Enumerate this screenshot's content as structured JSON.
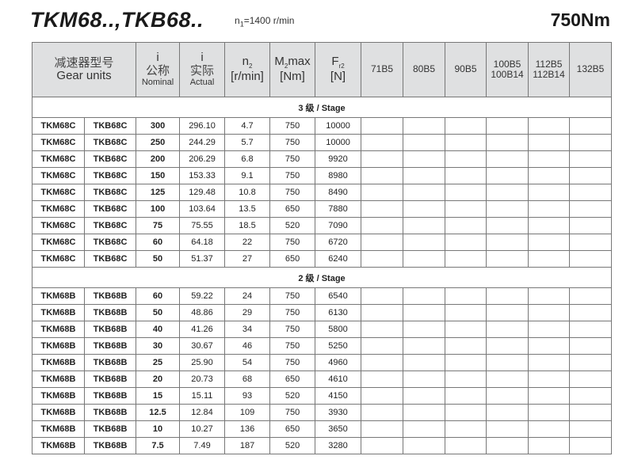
{
  "header": {
    "title": "TKM68..,TKB68..",
    "speed_prefix": "n",
    "speed_sub": "1",
    "speed_value": "=1400 r/min",
    "torque": "750Nm"
  },
  "columns": {
    "gear_units_cn": "减速器型号",
    "gear_units_en": "Gear units",
    "i_symbol": "i",
    "nominal_cn": "公称",
    "nominal_en": "Nominal",
    "actual_cn": "实际",
    "actual_en": "Actual",
    "n2_main": "n",
    "n2_sub": "2",
    "n2_unit": "[r/min]",
    "m2_main": "M",
    "m2_sub": "2",
    "m2_tail": "max",
    "m2_unit": "[Nm]",
    "fr2_main": "F",
    "fr2_sub": "r2",
    "fr2_unit": "[N]",
    "motor": [
      "71B5",
      "80B5",
      "90B5",
      "100B5",
      "100B14",
      "112B5",
      "112B14",
      "132B5"
    ]
  },
  "sections": [
    {
      "label": "3 级 / Stage",
      "rows": [
        [
          "TKM68C",
          "TKB68C",
          "300",
          "296.10",
          "4.7",
          "750",
          "10000"
        ],
        [
          "TKM68C",
          "TKB68C",
          "250",
          "244.29",
          "5.7",
          "750",
          "10000"
        ],
        [
          "TKM68C",
          "TKB68C",
          "200",
          "206.29",
          "6.8",
          "750",
          "9920"
        ],
        [
          "TKM68C",
          "TKB68C",
          "150",
          "153.33",
          "9.1",
          "750",
          "8980"
        ],
        [
          "TKM68C",
          "TKB68C",
          "125",
          "129.48",
          "10.8",
          "750",
          "8490"
        ],
        [
          "TKM68C",
          "TKB68C",
          "100",
          "103.64",
          "13.5",
          "650",
          "7880"
        ],
        [
          "TKM68C",
          "TKB68C",
          "75",
          "75.55",
          "18.5",
          "520",
          "7090"
        ],
        [
          "TKM68C",
          "TKB68C",
          "60",
          "64.18",
          "22",
          "750",
          "6720"
        ],
        [
          "TKM68C",
          "TKB68C",
          "50",
          "51.37",
          "27",
          "650",
          "6240"
        ]
      ]
    },
    {
      "label": "2 级 / Stage",
      "rows": [
        [
          "TKM68B",
          "TKB68B",
          "60",
          "59.22",
          "24",
          "750",
          "6540"
        ],
        [
          "TKM68B",
          "TKB68B",
          "50",
          "48.86",
          "29",
          "750",
          "6130"
        ],
        [
          "TKM68B",
          "TKB68B",
          "40",
          "41.26",
          "34",
          "750",
          "5800"
        ],
        [
          "TKM68B",
          "TKB68B",
          "30",
          "30.67",
          "46",
          "750",
          "5250"
        ],
        [
          "TKM68B",
          "TKB68B",
          "25",
          "25.90",
          "54",
          "750",
          "4960"
        ],
        [
          "TKM68B",
          "TKB68B",
          "20",
          "20.73",
          "68",
          "650",
          "4610"
        ],
        [
          "TKM68B",
          "TKB68B",
          "15",
          "15.11",
          "93",
          "520",
          "4150"
        ],
        [
          "TKM68B",
          "TKB68B",
          "12.5",
          "12.84",
          "109",
          "750",
          "3930"
        ],
        [
          "TKM68B",
          "TKB68B",
          "10",
          "10.27",
          "136",
          "650",
          "3650"
        ],
        [
          "TKM68B",
          "TKB68B",
          "7.5",
          "7.49",
          "187",
          "520",
          "3280"
        ]
      ]
    }
  ]
}
